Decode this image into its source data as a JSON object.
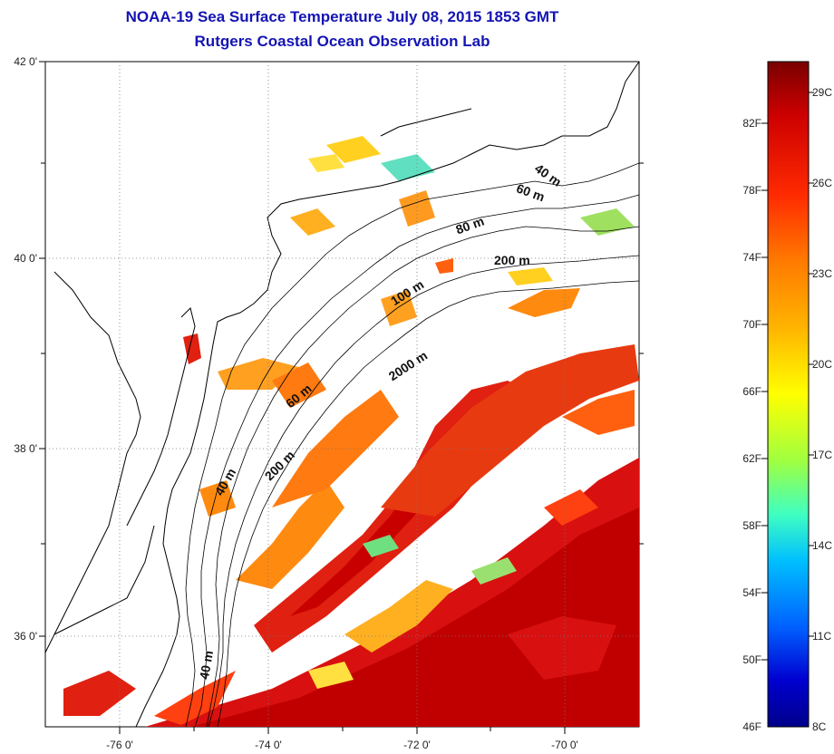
{
  "title": {
    "line1": "NOAA-19 Sea Surface Temperature July 08, 2015 1853 GMT",
    "line2": "Rutgers Coastal Ocean Observation Lab"
  },
  "axes": {
    "lat_ticks": [
      "42 0'",
      "40 0'",
      "38 0'",
      "36 0'"
    ],
    "lon_ticks": [
      "-76 0'",
      "-74 0'",
      "-72 0'",
      "-70 0'"
    ]
  },
  "colorbar": {
    "f_labels": [
      "82F",
      "78F",
      "74F",
      "70F",
      "66F",
      "62F",
      "58F",
      "54F",
      "50F",
      "46F"
    ],
    "c_labels": [
      "29C",
      "26C",
      "23C",
      "20C",
      "17C",
      "14C",
      "11C",
      "8C"
    ],
    "colors": [
      "#7a0000",
      "#cc0000",
      "#ff2a00",
      "#ff7a00",
      "#ffb400",
      "#ffff00",
      "#a0ff40",
      "#40ffc0",
      "#00c0ff",
      "#0060ff",
      "#0000d0",
      "#00008a"
    ]
  },
  "contours": [
    "40 m",
    "60 m",
    "80 m",
    "200 m",
    "100 m",
    "2000 m",
    "60 m",
    "200 m",
    "40 m",
    "40 m"
  ]
}
